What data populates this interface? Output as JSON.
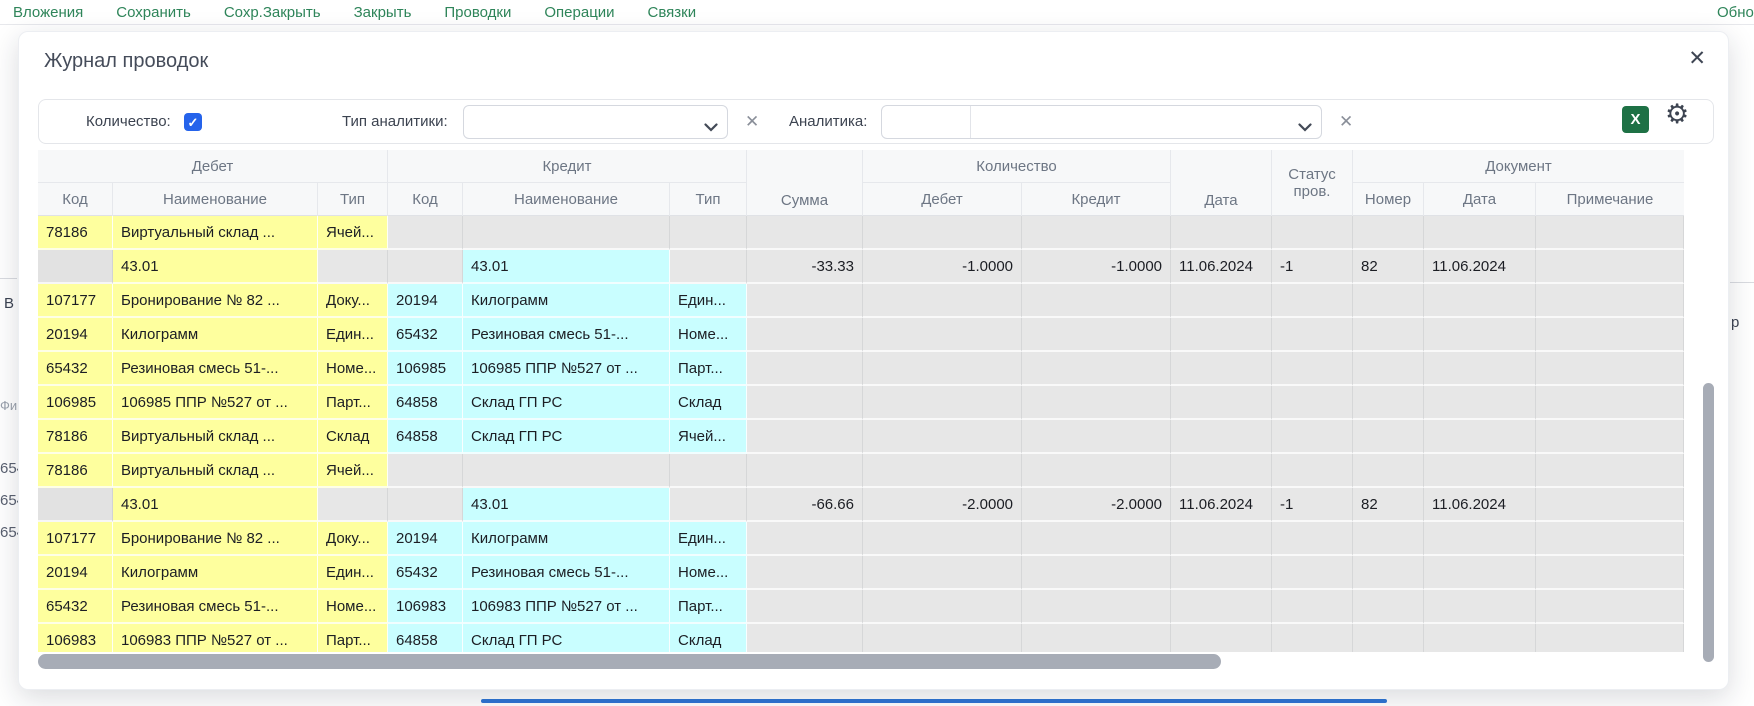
{
  "menu": {
    "items": [
      "Вложения",
      "Сохранить",
      "Сохр.Закрыть",
      "Закрыть",
      "Проводки",
      "Операции",
      "Связки"
    ],
    "more_fragment": "Обно"
  },
  "modal": {
    "title": "Журнал проводок",
    "close_icon": "✕"
  },
  "filters": {
    "quantity_label": "Количество:",
    "quantity_checked": true,
    "check_glyph": "✓",
    "analytics_type_label": "Тип аналитики:",
    "analytics_type_value": "",
    "analytics_label": "Аналитика:",
    "analytics_code_value": "",
    "analytics_value": "",
    "clear_icon": "✕",
    "excel_label": "X",
    "gear_icon": "⚙"
  },
  "table": {
    "groups": {
      "debit": "Дебет",
      "credit": "Кредит",
      "quantity": "Количество",
      "document": "Документ"
    },
    "columns": {
      "code": "Код",
      "name": "Наименование",
      "type": "Тип",
      "sum": "Сумма",
      "qty_debit": "Дебет",
      "qty_credit": "Кредит",
      "date": "Дата",
      "status": "Статус пров.",
      "number": "Номер",
      "doc_date": "Дата",
      "note": "Примечание"
    },
    "rows": [
      {
        "kind": "detail",
        "dk": "78186",
        "dn": "Виртуальный склад ...",
        "dt": "Ячей...",
        "ck": "",
        "cn": "",
        "ct": "",
        "sum": "",
        "qd": "",
        "qc": "",
        "date": "",
        "status": "",
        "num": "",
        "ddate": "",
        "note": ""
      },
      {
        "kind": "summary",
        "dk": "",
        "dn": "43.01",
        "dt": "",
        "ck": "",
        "cn": "43.01",
        "ct": "",
        "sum": "-33.33",
        "qd": "-1.0000",
        "qc": "-1.0000",
        "date": "11.06.2024",
        "status": "-1",
        "num": "82",
        "ddate": "11.06.2024",
        "note": ""
      },
      {
        "kind": "detail",
        "dk": "107177",
        "dn": "Бронирование № 82 ...",
        "dt": "Доку...",
        "ck": "20194",
        "cn": "Килограмм",
        "ct": "Един...",
        "sum": "",
        "qd": "",
        "qc": "",
        "date": "",
        "status": "",
        "num": "",
        "ddate": "",
        "note": ""
      },
      {
        "kind": "detail",
        "dk": "20194",
        "dn": "Килограмм",
        "dt": "Един...",
        "ck": "65432",
        "cn": "Резиновая смесь 51-...",
        "ct": "Номе...",
        "sum": "",
        "qd": "",
        "qc": "",
        "date": "",
        "status": "",
        "num": "",
        "ddate": "",
        "note": ""
      },
      {
        "kind": "detail",
        "dk": "65432",
        "dn": "Резиновая смесь 51-...",
        "dt": "Номе...",
        "ck": "106985",
        "cn": "106985 ППР №527 от ...",
        "ct": "Парт...",
        "sum": "",
        "qd": "",
        "qc": "",
        "date": "",
        "status": "",
        "num": "",
        "ddate": "",
        "note": ""
      },
      {
        "kind": "detail",
        "dk": "106985",
        "dn": "106985 ППР №527 от ...",
        "dt": "Парт...",
        "ck": "64858",
        "cn": "Склад ГП РС",
        "ct": "Склад",
        "sum": "",
        "qd": "",
        "qc": "",
        "date": "",
        "status": "",
        "num": "",
        "ddate": "",
        "note": ""
      },
      {
        "kind": "detail",
        "dk": "78186",
        "dn": "Виртуальный склад ...",
        "dt": "Склад",
        "ck": "64858",
        "cn": "Склад ГП РС",
        "ct": "Ячей...",
        "sum": "",
        "qd": "",
        "qc": "",
        "date": "",
        "status": "",
        "num": "",
        "ddate": "",
        "note": ""
      },
      {
        "kind": "detail",
        "dk": "78186",
        "dn": "Виртуальный склад ...",
        "dt": "Ячей...",
        "ck": "",
        "cn": "",
        "ct": "",
        "sum": "",
        "qd": "",
        "qc": "",
        "date": "",
        "status": "",
        "num": "",
        "ddate": "",
        "note": ""
      },
      {
        "kind": "summary",
        "dk": "",
        "dn": "43.01",
        "dt": "",
        "ck": "",
        "cn": "43.01",
        "ct": "",
        "sum": "-66.66",
        "qd": "-2.0000",
        "qc": "-2.0000",
        "date": "11.06.2024",
        "status": "-1",
        "num": "82",
        "ddate": "11.06.2024",
        "note": ""
      },
      {
        "kind": "detail",
        "dk": "107177",
        "dn": "Бронирование № 82 ...",
        "dt": "Доку...",
        "ck": "20194",
        "cn": "Килограмм",
        "ct": "Един...",
        "sum": "",
        "qd": "",
        "qc": "",
        "date": "",
        "status": "",
        "num": "",
        "ddate": "",
        "note": ""
      },
      {
        "kind": "detail",
        "dk": "20194",
        "dn": "Килограмм",
        "dt": "Един...",
        "ck": "65432",
        "cn": "Резиновая смесь 51-...",
        "ct": "Номе...",
        "sum": "",
        "qd": "",
        "qc": "",
        "date": "",
        "status": "",
        "num": "",
        "ddate": "",
        "note": ""
      },
      {
        "kind": "detail",
        "dk": "65432",
        "dn": "Резиновая смесь 51-...",
        "dt": "Номе...",
        "ck": "106983",
        "cn": "106983 ППР №527 от ...",
        "ct": "Парт...",
        "sum": "",
        "qd": "",
        "qc": "",
        "date": "",
        "status": "",
        "num": "",
        "ddate": "",
        "note": ""
      },
      {
        "kind": "detail",
        "dk": "106983",
        "dn": "106983 ППР №527 от ...",
        "dt": "Парт...",
        "ck": "64858",
        "cn": "Склад ГП РС",
        "ct": "Склад",
        "sum": "",
        "qd": "",
        "qc": "",
        "date": "",
        "status": "",
        "num": "",
        "ddate": "",
        "note": ""
      }
    ]
  },
  "background_fragments": {
    "left_letter": "В",
    "left_gray": "Фи",
    "left_numbers": [
      "654",
      "654",
      "654"
    ],
    "right_letter": "р"
  },
  "colors": {
    "menu_green": "#2f855a",
    "debit_yellow": "#feff9e",
    "credit_cyan": "#c9feff",
    "row_gray": "#e7e7e7",
    "checkbox_blue": "#2563eb",
    "excel_green": "#1e7145",
    "scrollbar_gray": "#a7acb6",
    "bottom_line_blue": "#2e75d4"
  }
}
